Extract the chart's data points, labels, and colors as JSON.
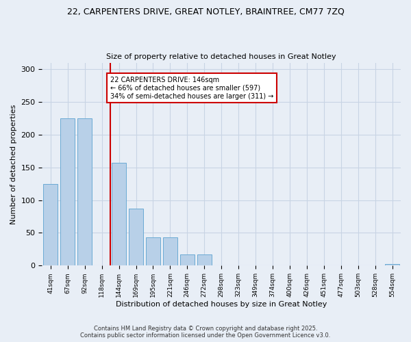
{
  "title1": "22, CARPENTERS DRIVE, GREAT NOTLEY, BRAINTREE, CM77 7ZQ",
  "title2": "Size of property relative to detached houses in Great Notley",
  "xlabel": "Distribution of detached houses by size in Great Notley",
  "ylabel": "Number of detached properties",
  "categories": [
    "41sqm",
    "67sqm",
    "92sqm",
    "118sqm",
    "144sqm",
    "169sqm",
    "195sqm",
    "221sqm",
    "246sqm",
    "272sqm",
    "298sqm",
    "323sqm",
    "349sqm",
    "374sqm",
    "400sqm",
    "426sqm",
    "451sqm",
    "477sqm",
    "503sqm",
    "528sqm",
    "554sqm"
  ],
  "values": [
    125,
    225,
    225,
    0,
    157,
    87,
    43,
    43,
    17,
    17,
    0,
    0,
    0,
    0,
    0,
    0,
    0,
    0,
    0,
    0,
    2
  ],
  "bar_color": "#b8d0e8",
  "bar_edge_color": "#6aaad4",
  "grid_color": "#c8d4e4",
  "bg_color": "#e8eef6",
  "vline_color": "#cc0000",
  "vline_index": 3.5,
  "annotation_text": "22 CARPENTERS DRIVE: 146sqm\n← 66% of detached houses are smaller (597)\n34% of semi-detached houses are larger (311) →",
  "annotation_box_color": "#ffffff",
  "annotation_border_color": "#cc0000",
  "footnote1": "Contains HM Land Registry data © Crown copyright and database right 2025.",
  "footnote2": "Contains public sector information licensed under the Open Government Licence v3.0.",
  "ylim": [
    0,
    310
  ],
  "yticks": [
    0,
    50,
    100,
    150,
    200,
    250,
    300
  ]
}
